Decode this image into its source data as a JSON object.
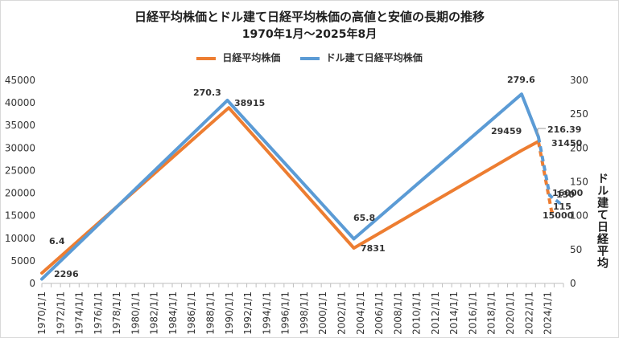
{
  "chart_data": {
    "type": "line",
    "title": "日経平均株価とドル建て日経平均株価の高値と安値の長期の推移",
    "subtitle": "1970年1月～2025年8月",
    "y2label": "ドル建て日経平均",
    "x_categories": [
      "1970/1/1",
      "1972/1/1",
      "1974/1/1",
      "1976/1/1",
      "1978/1/1",
      "1980/1/1",
      "1982/1/1",
      "1984/1/1",
      "1986/1/1",
      "1988/1/1",
      "1990/1/1",
      "1992/1/1",
      "1994/1/1",
      "1996/1/1",
      "1998/1/1",
      "2000/1/1",
      "2002/1/1",
      "2004/1/1",
      "2006/1/1",
      "2008/1/1",
      "2010/1/1",
      "2012/1/1",
      "2014/1/1",
      "2016/1/1",
      "2018/1/1",
      "2020/1/1",
      "2022/1/1",
      "2024/1/1"
    ],
    "xlim": [
      1970,
      2025.67
    ],
    "y_left": {
      "ticks": [
        "0",
        "5000",
        "10000",
        "15000",
        "20000",
        "25000",
        "30000",
        "35000",
        "40000",
        "45000"
      ],
      "range": [
        0,
        45000
      ]
    },
    "y_right": {
      "ticks": [
        "0",
        "50",
        "100",
        "150",
        "200",
        "250",
        "300"
      ],
      "range": [
        0,
        300
      ]
    },
    "legend_position": "top",
    "series": [
      {
        "name": "日経平均株価",
        "color": "#ed7d31",
        "axis": "left",
        "points": [
          {
            "x": 1970.0,
            "y": 2296
          },
          {
            "x": 1989.95,
            "y": 38915
          },
          {
            "x": 2003.3,
            "y": 7831
          },
          {
            "x": 2021.2,
            "y": 29459
          },
          {
            "x": 2023.0,
            "y": 31450
          },
          {
            "x": 2024.4,
            "y": 16000
          },
          {
            "x": 2024.8,
            "y": 15000
          }
        ]
      },
      {
        "name": "ドル建て日経平均株価",
        "color": "#5b9bd5",
        "axis": "right",
        "points": [
          {
            "x": 1970.0,
            "y": 6.4
          },
          {
            "x": 1989.8,
            "y": 270.3
          },
          {
            "x": 2003.3,
            "y": 65.8
          },
          {
            "x": 2021.2,
            "y": 279.6
          },
          {
            "x": 2023.0,
            "y": 216.39
          },
          {
            "x": 2024.2,
            "y": 130
          },
          {
            "x": 2025.6,
            "y": 115
          }
        ]
      }
    ],
    "data_labels": [
      {
        "text": "6.4"
      },
      {
        "text": "2296"
      },
      {
        "text": "270.3"
      },
      {
        "text": "38915"
      },
      {
        "text": "65.8"
      },
      {
        "text": "7831"
      },
      {
        "text": "279.6"
      },
      {
        "text": "29459"
      },
      {
        "text": "216.39"
      },
      {
        "text": "31450"
      },
      {
        "text": "16000"
      },
      {
        "text": "130"
      },
      {
        "text": "115"
      },
      {
        "text": "15000"
      }
    ]
  }
}
